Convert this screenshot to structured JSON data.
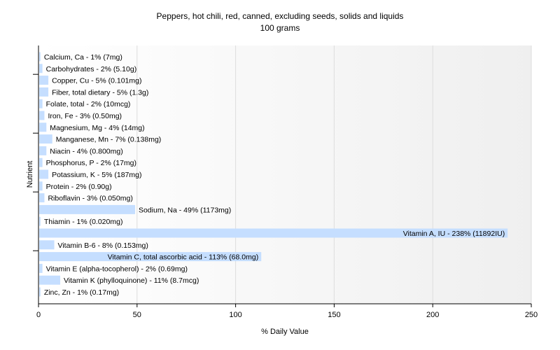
{
  "chart_data": {
    "type": "bar",
    "orientation": "horizontal",
    "title": "Peppers, hot chili, red, canned, excluding seeds, solids and liquids",
    "subtitle": "100 grams",
    "xlabel": "% Daily Value",
    "ylabel": "Nutrient",
    "xlim": [
      0,
      250
    ],
    "xticks": [
      "0",
      "50",
      "100",
      "150",
      "200",
      "250"
    ],
    "grid": true,
    "bar_color": "#c5deff",
    "grid_color": "#dddddd",
    "items": [
      {
        "category": "Calcium, Ca",
        "value": 1,
        "label": "Calcium, Ca - 1% (7mg)"
      },
      {
        "category": "Carbohydrates",
        "value": 2,
        "label": "Carbohydrates - 2% (5.10g)"
      },
      {
        "category": "Copper, Cu",
        "value": 5,
        "label": "Copper, Cu - 5% (0.101mg)"
      },
      {
        "category": "Fiber, total dietary",
        "value": 5,
        "label": "Fiber, total dietary - 5% (1.3g)"
      },
      {
        "category": "Folate, total",
        "value": 2,
        "label": "Folate, total - 2% (10mcg)"
      },
      {
        "category": "Iron, Fe",
        "value": 3,
        "label": "Iron, Fe - 3% (0.50mg)"
      },
      {
        "category": "Magnesium, Mg",
        "value": 4,
        "label": "Magnesium, Mg - 4% (14mg)"
      },
      {
        "category": "Manganese, Mn",
        "value": 7,
        "label": "Manganese, Mn - 7% (0.138mg)"
      },
      {
        "category": "Niacin",
        "value": 4,
        "label": "Niacin - 4% (0.800mg)"
      },
      {
        "category": "Phosphorus, P",
        "value": 2,
        "label": "Phosphorus, P - 2% (17mg)"
      },
      {
        "category": "Potassium, K",
        "value": 5,
        "label": "Potassium, K - 5% (187mg)"
      },
      {
        "category": "Protein",
        "value": 2,
        "label": "Protein - 2% (0.90g)"
      },
      {
        "category": "Riboflavin",
        "value": 3,
        "label": "Riboflavin - 3% (0.050mg)"
      },
      {
        "category": "Sodium, Na",
        "value": 49,
        "label": "Sodium, Na - 49% (1173mg)"
      },
      {
        "category": "Thiamin",
        "value": 1,
        "label": "Thiamin - 1% (0.020mg)"
      },
      {
        "category": "Vitamin A, IU",
        "value": 238,
        "label": "Vitamin A, IU - 238% (11892IU)"
      },
      {
        "category": "Vitamin B-6",
        "value": 8,
        "label": "Vitamin B-6 - 8% (0.153mg)"
      },
      {
        "category": "Vitamin C, total ascorbic acid",
        "value": 113,
        "label": "Vitamin C, total ascorbic acid - 113% (68.0mg)"
      },
      {
        "category": "Vitamin E (alpha-tocopherol)",
        "value": 2,
        "label": "Vitamin E (alpha-tocopherol) - 2% (0.69mg)"
      },
      {
        "category": "Vitamin K (phylloquinone)",
        "value": 11,
        "label": "Vitamin K (phylloquinone) - 11% (8.7mcg)"
      },
      {
        "category": "Zinc, Zn",
        "value": 1,
        "label": "Zinc, Zn - 1% (0.17mg)"
      }
    ]
  }
}
